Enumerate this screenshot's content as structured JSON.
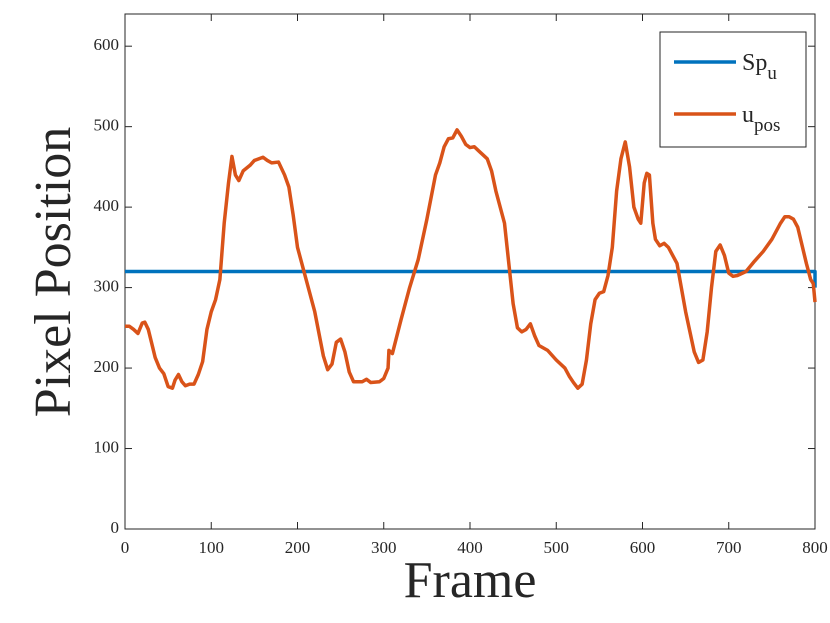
{
  "chart_data": {
    "type": "line",
    "xlabel": "Frame",
    "ylabel": "Pixel Position",
    "xlim": [
      0,
      800
    ],
    "xticks": [
      0,
      100,
      200,
      300,
      400,
      500,
      600,
      700,
      800
    ],
    "ylim": [
      0,
      640
    ],
    "yticks": [
      0,
      100,
      200,
      300,
      400,
      500,
      600
    ],
    "legend": "top-right",
    "series": [
      {
        "name": "Sp_u",
        "color": "#0072bd",
        "x": [
          0,
          800,
          800
        ],
        "values": [
          320,
          320,
          300
        ]
      },
      {
        "name": "u_pos",
        "color": "#d95319",
        "x": [
          0,
          5,
          10,
          15,
          20,
          23,
          27,
          30,
          35,
          40,
          45,
          50,
          55,
          58,
          62,
          66,
          70,
          75,
          80,
          85,
          90,
          95,
          100,
          105,
          110,
          115,
          120,
          124,
          128,
          132,
          137,
          145,
          150,
          160,
          165,
          170,
          178,
          185,
          190,
          195,
          200,
          210,
          220,
          230,
          235,
          240,
          245,
          250,
          255,
          260,
          265,
          275,
          280,
          285,
          295,
          300,
          305,
          306,
          310,
          320,
          330,
          340,
          350,
          360,
          365,
          370,
          375,
          380,
          385,
          390,
          395,
          400,
          405,
          410,
          420,
          425,
          430,
          440,
          445,
          450,
          455,
          460,
          465,
          470,
          475,
          480,
          490,
          500,
          510,
          515,
          520,
          525,
          530,
          535,
          540,
          545,
          550,
          555,
          560,
          565,
          570,
          575,
          580,
          585,
          590,
          595,
          598,
          602,
          605,
          608,
          612,
          615,
          620,
          625,
          630,
          640,
          645,
          650,
          655,
          660,
          665,
          670,
          675,
          680,
          685,
          690,
          695,
          700,
          705,
          710,
          720,
          730,
          740,
          750,
          760,
          765,
          770,
          775,
          780,
          790,
          795,
          798,
          800
        ],
        "values": [
          252,
          252,
          248,
          243,
          256,
          257,
          248,
          235,
          213,
          200,
          193,
          177,
          175,
          185,
          192,
          183,
          178,
          180,
          180,
          192,
          208,
          248,
          270,
          285,
          310,
          380,
          430,
          463,
          440,
          433,
          445,
          452,
          458,
          462,
          458,
          455,
          456,
          440,
          425,
          390,
          350,
          310,
          270,
          215,
          198,
          205,
          232,
          236,
          220,
          195,
          183,
          183,
          186,
          182,
          183,
          187,
          200,
          222,
          218,
          260,
          300,
          335,
          385,
          440,
          455,
          475,
          485,
          486,
          496,
          488,
          478,
          474,
          475,
          470,
          460,
          445,
          420,
          380,
          330,
          280,
          250,
          245,
          248,
          255,
          240,
          228,
          222,
          210,
          200,
          190,
          182,
          175,
          180,
          210,
          255,
          285,
          293,
          295,
          315,
          350,
          420,
          460,
          481,
          450,
          400,
          385,
          380,
          430,
          442,
          440,
          380,
          360,
          352,
          355,
          350,
          330,
          300,
          270,
          245,
          220,
          207,
          210,
          245,
          300,
          345,
          353,
          340,
          318,
          314,
          315,
          320,
          333,
          345,
          360,
          380,
          388,
          388,
          385,
          375,
          330,
          310,
          305,
          282
        ]
      }
    ]
  }
}
